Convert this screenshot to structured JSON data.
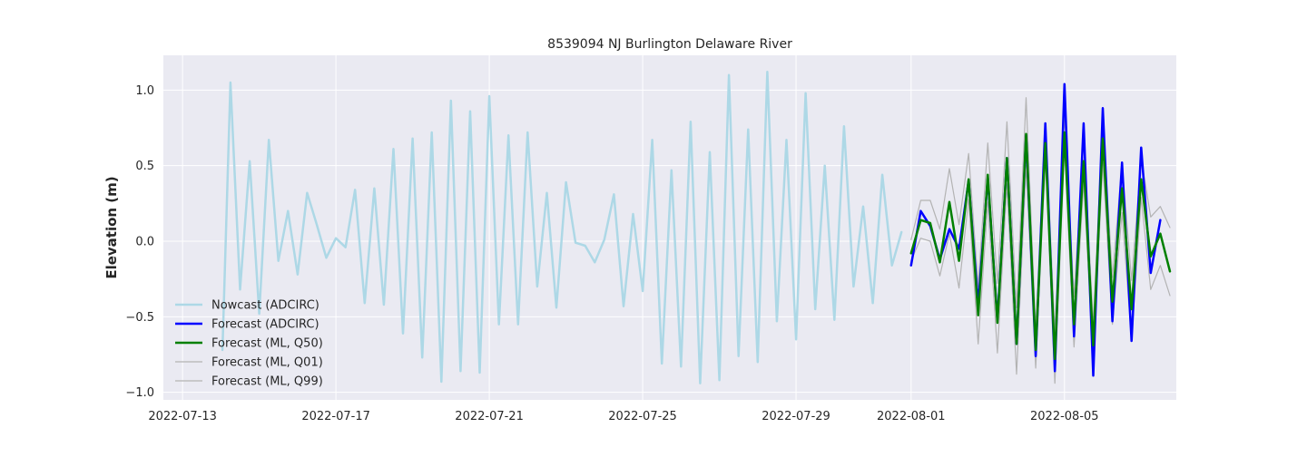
{
  "chart_data": {
    "type": "line",
    "title": "8539094 NJ Burlington Delaware River",
    "xlabel": "",
    "ylabel": "Elevation (m)",
    "xlim": [
      "2022-07-12T12:00",
      "2022-08-07T22:00"
    ],
    "ylim": [
      -1.05,
      1.23
    ],
    "x_ticks": [
      "2022-07-13",
      "2022-07-17",
      "2022-07-21",
      "2022-07-25",
      "2022-07-29",
      "2022-08-01",
      "2022-08-05"
    ],
    "y_ticks": [
      -1.0,
      -0.5,
      0.0,
      0.5,
      1.0
    ],
    "y_tick_labels": [
      "−1.0",
      "−0.5",
      "0.0",
      "0.5",
      "1.0"
    ],
    "grid": true,
    "legend_position": "lower-left",
    "series": [
      {
        "name": "Nowcast (ADCIRC)",
        "color": "#add8e6",
        "width": 2.5,
        "x": [
          "2022-07-14T01:00",
          "2022-07-14T06:00",
          "2022-07-14T12:00",
          "2022-07-14T18:00",
          "2022-07-15T00:00",
          "2022-07-15T06:00",
          "2022-07-15T12:00",
          "2022-07-15T18:00",
          "2022-07-16T00:00",
          "2022-07-16T06:00",
          "2022-07-16T12:00",
          "2022-07-16T18:00",
          "2022-07-17T00:00",
          "2022-07-17T06:00",
          "2022-07-17T12:00",
          "2022-07-17T18:00",
          "2022-07-18T00:00",
          "2022-07-18T06:00",
          "2022-07-18T12:00",
          "2022-07-18T18:00",
          "2022-07-19T00:00",
          "2022-07-19T06:00",
          "2022-07-19T12:00",
          "2022-07-19T18:00",
          "2022-07-20T00:00",
          "2022-07-20T06:00",
          "2022-07-20T12:00",
          "2022-07-20T18:00",
          "2022-07-21T00:00",
          "2022-07-21T06:00",
          "2022-07-21T12:00",
          "2022-07-21T18:00",
          "2022-07-22T00:00",
          "2022-07-22T06:00",
          "2022-07-22T12:00",
          "2022-07-22T18:00",
          "2022-07-23T00:00",
          "2022-07-23T06:00",
          "2022-07-23T12:00",
          "2022-07-23T18:00",
          "2022-07-24T00:00",
          "2022-07-24T06:00",
          "2022-07-24T12:00",
          "2022-07-24T18:00",
          "2022-07-25T00:00",
          "2022-07-25T06:00",
          "2022-07-25T12:00",
          "2022-07-25T18:00",
          "2022-07-26T00:00",
          "2022-07-26T06:00",
          "2022-07-26T12:00",
          "2022-07-26T18:00",
          "2022-07-27T00:00",
          "2022-07-27T06:00",
          "2022-07-27T12:00",
          "2022-07-27T18:00",
          "2022-07-28T00:00",
          "2022-07-28T06:00",
          "2022-07-28T12:00",
          "2022-07-28T18:00",
          "2022-07-29T00:00",
          "2022-07-29T06:00",
          "2022-07-29T12:00",
          "2022-07-29T18:00",
          "2022-07-30T00:00",
          "2022-07-30T06:00",
          "2022-07-30T12:00",
          "2022-07-30T18:00",
          "2022-07-31T00:00",
          "2022-07-31T06:00",
          "2022-07-31T12:00",
          "2022-07-31T18:00"
        ],
        "y": [
          -0.72,
          1.05,
          -0.32,
          0.53,
          -0.48,
          0.67,
          -0.13,
          0.2,
          -0.22,
          0.32,
          0.11,
          -0.11,
          0.02,
          -0.04,
          0.34,
          -0.41,
          0.35,
          -0.42,
          0.61,
          -0.61,
          0.68,
          -0.77,
          0.72,
          -0.93,
          0.93,
          -0.86,
          0.86,
          -0.87,
          0.96,
          -0.55,
          0.7,
          -0.55,
          0.72,
          -0.3,
          0.32,
          -0.44,
          0.39,
          -0.01,
          -0.03,
          -0.14,
          0.01,
          0.31,
          -0.43,
          0.18,
          -0.33,
          0.67,
          -0.81,
          0.47,
          -0.83,
          0.79,
          -0.94,
          0.59,
          -0.92,
          1.1,
          -0.76,
          0.74,
          -0.8,
          1.12,
          -0.53,
          0.67,
          -0.65,
          0.98,
          -0.45,
          0.5,
          -0.52,
          0.76,
          -0.3,
          0.23,
          -0.41,
          0.44,
          -0.16,
          0.06
        ]
      },
      {
        "name": "Forecast (ADCIRC)",
        "color": "#0000ff",
        "width": 2.5,
        "x": [
          "2022-08-01T00:00",
          "2022-08-01T06:00",
          "2022-08-01T12:00",
          "2022-08-01T18:00",
          "2022-08-02T00:00",
          "2022-08-02T06:00",
          "2022-08-02T12:00",
          "2022-08-02T18:00",
          "2022-08-03T00:00",
          "2022-08-03T06:00",
          "2022-08-03T12:00",
          "2022-08-03T18:00",
          "2022-08-04T00:00",
          "2022-08-04T06:00",
          "2022-08-04T12:00",
          "2022-08-04T18:00",
          "2022-08-05T00:00",
          "2022-08-05T06:00",
          "2022-08-05T12:00",
          "2022-08-05T18:00",
          "2022-08-06T00:00",
          "2022-08-06T06:00",
          "2022-08-06T12:00",
          "2022-08-06T18:00",
          "2022-08-07T00:00",
          "2022-08-07T06:00",
          "2022-08-07T12:00",
          "2022-08-07T18:00"
        ],
        "y": [
          -0.16,
          0.2,
          0.1,
          -0.12,
          0.08,
          -0.05,
          0.4,
          -0.42,
          0.42,
          -0.52,
          0.55,
          -0.68,
          0.7,
          -0.76,
          0.78,
          -0.86,
          1.04,
          -0.63,
          0.78,
          -0.89,
          0.88,
          -0.53,
          0.52,
          -0.66,
          0.62,
          -0.21,
          0.14,
          null
        ]
      },
      {
        "name": "Forecast (ML, Q50)",
        "color": "#008000",
        "width": 2.5,
        "x": [
          "2022-08-01T00:00",
          "2022-08-01T06:00",
          "2022-08-01T12:00",
          "2022-08-01T18:00",
          "2022-08-02T00:00",
          "2022-08-02T06:00",
          "2022-08-02T12:00",
          "2022-08-02T18:00",
          "2022-08-03T00:00",
          "2022-08-03T06:00",
          "2022-08-03T12:00",
          "2022-08-03T18:00",
          "2022-08-04T00:00",
          "2022-08-04T06:00",
          "2022-08-04T12:00",
          "2022-08-04T18:00",
          "2022-08-05T00:00",
          "2022-08-05T06:00",
          "2022-08-05T12:00",
          "2022-08-05T18:00",
          "2022-08-06T00:00",
          "2022-08-06T06:00",
          "2022-08-06T12:00",
          "2022-08-06T18:00",
          "2022-08-07T00:00",
          "2022-08-07T06:00",
          "2022-08-07T12:00",
          "2022-08-07T18:00"
        ],
        "y": [
          -0.08,
          0.14,
          0.12,
          -0.14,
          0.26,
          -0.13,
          0.41,
          -0.49,
          0.44,
          -0.54,
          0.55,
          -0.68,
          0.71,
          -0.72,
          0.65,
          -0.78,
          0.72,
          -0.55,
          0.53,
          -0.69,
          0.68,
          -0.4,
          0.35,
          -0.45,
          0.41,
          -0.1,
          0.05,
          -0.2
        ]
      },
      {
        "name": "Forecast (ML, Q01)",
        "color": "#b3b3b3",
        "width": 1.2,
        "x": [
          "2022-08-01T00:00",
          "2022-08-01T06:00",
          "2022-08-01T12:00",
          "2022-08-01T18:00",
          "2022-08-02T00:00",
          "2022-08-02T06:00",
          "2022-08-02T12:00",
          "2022-08-02T18:00",
          "2022-08-03T00:00",
          "2022-08-03T06:00",
          "2022-08-03T12:00",
          "2022-08-03T18:00",
          "2022-08-04T00:00",
          "2022-08-04T06:00",
          "2022-08-04T12:00",
          "2022-08-04T18:00",
          "2022-08-05T00:00",
          "2022-08-05T06:00",
          "2022-08-05T12:00",
          "2022-08-05T18:00",
          "2022-08-06T00:00",
          "2022-08-06T06:00",
          "2022-08-06T12:00",
          "2022-08-06T18:00",
          "2022-08-07T00:00",
          "2022-08-07T06:00",
          "2022-08-07T12:00",
          "2022-08-07T18:00"
        ],
        "y": [
          -0.13,
          0.02,
          0.0,
          -0.23,
          0.05,
          -0.31,
          0.28,
          -0.68,
          0.26,
          -0.74,
          0.38,
          -0.88,
          0.5,
          -0.84,
          0.55,
          -0.94,
          0.62,
          -0.7,
          0.39,
          -0.8,
          0.52,
          -0.55,
          0.19,
          -0.66,
          0.29,
          -0.32,
          -0.16,
          -0.36
        ]
      },
      {
        "name": "Forecast (ML, Q99)",
        "color": "#b3b3b3",
        "width": 1.2,
        "x": [
          "2022-08-01T00:00",
          "2022-08-01T06:00",
          "2022-08-01T12:00",
          "2022-08-01T18:00",
          "2022-08-02T00:00",
          "2022-08-02T06:00",
          "2022-08-02T12:00",
          "2022-08-02T18:00",
          "2022-08-03T00:00",
          "2022-08-03T06:00",
          "2022-08-03T12:00",
          "2022-08-03T18:00",
          "2022-08-04T00:00",
          "2022-08-04T06:00",
          "2022-08-04T12:00",
          "2022-08-04T18:00",
          "2022-08-05T00:00",
          "2022-08-05T06:00",
          "2022-08-05T12:00",
          "2022-08-05T18:00",
          "2022-08-06T00:00",
          "2022-08-06T06:00",
          "2022-08-06T12:00",
          "2022-08-06T18:00",
          "2022-08-07T00:00",
          "2022-08-07T06:00",
          "2022-08-07T12:00",
          "2022-08-07T18:00"
        ],
        "y": [
          0.01,
          0.27,
          0.27,
          0.08,
          0.48,
          0.11,
          0.58,
          -0.3,
          0.65,
          -0.28,
          0.79,
          -0.44,
          0.95,
          -0.58,
          0.78,
          -0.6,
          0.83,
          -0.37,
          0.66,
          -0.55,
          0.82,
          -0.24,
          0.52,
          -0.26,
          0.55,
          0.16,
          0.23,
          0.09
        ]
      }
    ]
  }
}
